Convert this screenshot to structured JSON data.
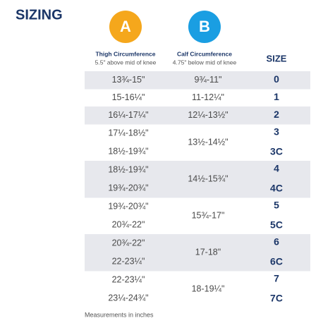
{
  "header": {
    "title": "SIZING"
  },
  "columns": {
    "a": {
      "badge": "A",
      "title": "Thigh Circumference",
      "note": "5.5\" above mid of knee"
    },
    "b": {
      "badge": "B",
      "title": "Calf Circumference",
      "note": "4.75\" below mid of knee"
    },
    "size": {
      "title": "SIZE"
    }
  },
  "table": {
    "rows": [
      {
        "thigh": [
          "13¾-15\""
        ],
        "calf": "9¾-11\"",
        "sizes": [
          "0"
        ]
      },
      {
        "thigh": [
          "15-16¼\""
        ],
        "calf": "11-12¼\"",
        "sizes": [
          "1"
        ]
      },
      {
        "thigh": [
          "16¼-17¼\""
        ],
        "calf": "12¼-13½\"",
        "sizes": [
          "2"
        ]
      },
      {
        "thigh": [
          "17¼-18½\"",
          "18½-19¾\""
        ],
        "calf": "13½-14½\"",
        "sizes": [
          "3",
          "3C"
        ]
      },
      {
        "thigh": [
          "18½-19¾\"",
          "19¾-20¾\""
        ],
        "calf": "14½-15¾\"",
        "sizes": [
          "4",
          "4C"
        ]
      },
      {
        "thigh": [
          "19¾-20¾\"",
          "20¾-22\""
        ],
        "calf": "15¾-17\"",
        "sizes": [
          "5",
          "5C"
        ]
      },
      {
        "thigh": [
          "20¾-22\"",
          "22-23¼\""
        ],
        "calf": "17-18\"",
        "sizes": [
          "6",
          "6C"
        ]
      },
      {
        "thigh": [
          "22-23¼\"",
          "23¼-24¾\""
        ],
        "calf": "18-19¼\"",
        "sizes": [
          "7",
          "7C"
        ]
      }
    ]
  },
  "footer": {
    "note": "Measurements in inches"
  }
}
